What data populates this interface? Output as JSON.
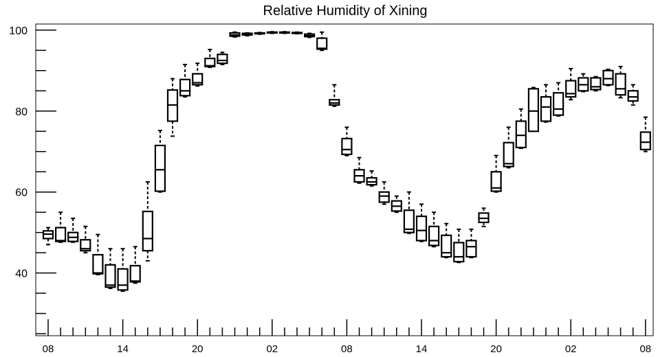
{
  "chart_data": {
    "type": "boxplot",
    "title": "Relative Humidity of Xining",
    "xlabel": "",
    "ylabel": "",
    "ylim": [
      24.5,
      101.5
    ],
    "y_ticks": [
      40,
      60,
      80,
      100
    ],
    "x_tick_labels": [
      "08",
      "14",
      "20",
      "02",
      "08",
      "14",
      "20",
      "02",
      "08"
    ],
    "x_tick_hours": [
      0,
      6,
      12,
      18,
      24,
      30,
      36,
      42,
      48
    ],
    "grid": false,
    "series": [
      {
        "hour": 0,
        "whisker_low": 47.0,
        "q1": 48.5,
        "median": 49.6,
        "q3": 50.4,
        "whisker_high": 51.2
      },
      {
        "hour": 1,
        "whisker_low": 47.6,
        "q1": 47.8,
        "median": 48.0,
        "q3": 51.2,
        "whisker_high": 55.0
      },
      {
        "hour": 2,
        "whisker_low": 47.6,
        "q1": 47.8,
        "median": 48.8,
        "q3": 50.0,
        "whisker_high": 53.5
      },
      {
        "hour": 3,
        "whisker_low": 45.0,
        "q1": 45.5,
        "median": 46.0,
        "q3": 48.2,
        "whisker_high": 51.5
      },
      {
        "hour": 4,
        "whisker_low": 39.6,
        "q1": 39.8,
        "median": 40.0,
        "q3": 44.5,
        "whisker_high": 49.5
      },
      {
        "hour": 5,
        "whisker_low": 36.2,
        "q1": 36.5,
        "median": 37.0,
        "q3": 42.0,
        "whisker_high": 46.0
      },
      {
        "hour": 6,
        "whisker_low": 35.5,
        "q1": 35.8,
        "median": 37.0,
        "q3": 41.0,
        "whisker_high": 46.0
      },
      {
        "hour": 7,
        "whisker_low": 37.5,
        "q1": 37.8,
        "median": 38.0,
        "q3": 41.8,
        "whisker_high": 46.5
      },
      {
        "hour": 8,
        "whisker_low": 43.0,
        "q1": 45.5,
        "median": 48.5,
        "q3": 55.2,
        "whisker_high": 62.5
      },
      {
        "hour": 9,
        "whisker_low": 60.0,
        "q1": 60.2,
        "median": 65.5,
        "q3": 71.5,
        "whisker_high": 75.2
      },
      {
        "hour": 10,
        "whisker_low": 73.8,
        "q1": 77.5,
        "median": 81.5,
        "q3": 85.2,
        "whisker_high": 88.0
      },
      {
        "hour": 11,
        "whisker_low": 83.5,
        "q1": 83.8,
        "median": 85.0,
        "q3": 87.8,
        "whisker_high": 91.5
      },
      {
        "hour": 12,
        "whisker_low": 86.2,
        "q1": 86.5,
        "median": 87.0,
        "q3": 89.2,
        "whisker_high": 91.8
      },
      {
        "hour": 13,
        "whisker_low": 90.8,
        "q1": 91.0,
        "median": 91.2,
        "q3": 93.0,
        "whisker_high": 95.2
      },
      {
        "hour": 14,
        "whisker_low": 91.5,
        "q1": 91.8,
        "median": 92.5,
        "q3": 94.0,
        "whisker_high": 94.5
      },
      {
        "hour": 15,
        "whisker_low": 98.3,
        "q1": 98.5,
        "median": 98.8,
        "q3": 99.3,
        "whisker_high": 99.5
      },
      {
        "hour": 16,
        "whisker_low": 98.6,
        "q1": 98.8,
        "median": 99.0,
        "q3": 99.2,
        "whisker_high": 99.3
      },
      {
        "hour": 17,
        "whisker_low": 99.0,
        "q1": 99.1,
        "median": 99.2,
        "q3": 99.3,
        "whisker_high": 99.4
      },
      {
        "hour": 18,
        "whisker_low": 99.2,
        "q1": 99.3,
        "median": 99.4,
        "q3": 99.5,
        "whisker_high": 99.6
      },
      {
        "hour": 19,
        "whisker_low": 99.2,
        "q1": 99.3,
        "median": 99.4,
        "q3": 99.5,
        "whisker_high": 99.6
      },
      {
        "hour": 20,
        "whisker_low": 99.1,
        "q1": 99.2,
        "median": 99.3,
        "q3": 99.4,
        "whisker_high": 99.5
      },
      {
        "hour": 21,
        "whisker_low": 98.2,
        "q1": 98.4,
        "median": 98.6,
        "q3": 99.0,
        "whisker_high": 99.2
      },
      {
        "hour": 22,
        "whisker_low": 95.0,
        "q1": 95.3,
        "median": 95.5,
        "q3": 98.0,
        "whisker_high": 99.5
      },
      {
        "hour": 23,
        "whisker_low": 81.2,
        "q1": 81.5,
        "median": 82.0,
        "q3": 82.8,
        "whisker_high": 86.5
      },
      {
        "hour": 24,
        "whisker_low": 69.0,
        "q1": 69.3,
        "median": 70.5,
        "q3": 73.2,
        "whisker_high": 76.0
      },
      {
        "hour": 25,
        "whisker_low": 62.2,
        "q1": 62.5,
        "median": 64.0,
        "q3": 65.5,
        "whisker_high": 68.5
      },
      {
        "hour": 26,
        "whisker_low": 61.5,
        "q1": 61.8,
        "median": 62.5,
        "q3": 63.5,
        "whisker_high": 65.2
      },
      {
        "hour": 27,
        "whisker_low": 57.0,
        "q1": 57.5,
        "median": 59.0,
        "q3": 60.0,
        "whisker_high": 62.5
      },
      {
        "hour": 28,
        "whisker_low": 55.0,
        "q1": 55.3,
        "median": 56.5,
        "q3": 57.8,
        "whisker_high": 59.0
      },
      {
        "hour": 29,
        "whisker_low": 49.8,
        "q1": 50.0,
        "median": 50.8,
        "q3": 55.5,
        "whisker_high": 60.0
      },
      {
        "hour": 30,
        "whisker_low": 47.8,
        "q1": 48.0,
        "median": 50.5,
        "q3": 54.0,
        "whisker_high": 57.0
      },
      {
        "hour": 31,
        "whisker_low": 46.5,
        "q1": 46.8,
        "median": 48.0,
        "q3": 51.5,
        "whisker_high": 55.0
      },
      {
        "hour": 32,
        "whisker_low": 43.8,
        "q1": 44.0,
        "median": 45.0,
        "q3": 49.3,
        "whisker_high": 52.2
      },
      {
        "hour": 33,
        "whisker_low": 42.6,
        "q1": 42.8,
        "median": 44.0,
        "q3": 47.5,
        "whisker_high": 50.8
      },
      {
        "hour": 34,
        "whisker_low": 43.8,
        "q1": 44.0,
        "median": 46.5,
        "q3": 48.0,
        "whisker_high": 50.8
      },
      {
        "hour": 35,
        "whisker_low": 51.5,
        "q1": 52.5,
        "median": 53.5,
        "q3": 54.8,
        "whisker_high": 56.0
      },
      {
        "hour": 36,
        "whisker_low": 60.0,
        "q1": 60.2,
        "median": 61.0,
        "q3": 65.0,
        "whisker_high": 69.0
      },
      {
        "hour": 37,
        "whisker_low": 66.0,
        "q1": 66.3,
        "median": 67.0,
        "q3": 72.2,
        "whisker_high": 76.0
      },
      {
        "hour": 38,
        "whisker_low": 70.8,
        "q1": 71.0,
        "median": 74.0,
        "q3": 77.5,
        "whisker_high": 80.5
      },
      {
        "hour": 39,
        "whisker_low": 75.0,
        "q1": 75.0,
        "median": 80.0,
        "q3": 85.5,
        "whisker_high": 85.8
      },
      {
        "hour": 40,
        "whisker_low": 77.3,
        "q1": 77.5,
        "median": 81.0,
        "q3": 83.5,
        "whisker_high": 86.5
      },
      {
        "hour": 41,
        "whisker_low": 78.8,
        "q1": 79.0,
        "median": 80.5,
        "q3": 84.5,
        "whisker_high": 87.0
      },
      {
        "hour": 42,
        "whisker_low": 82.8,
        "q1": 83.5,
        "median": 84.3,
        "q3": 87.5,
        "whisker_high": 90.5
      },
      {
        "hour": 43,
        "whisker_low": 84.8,
        "q1": 85.0,
        "median": 86.5,
        "q3": 88.2,
        "whisker_high": 89.2
      },
      {
        "hour": 44,
        "whisker_low": 85.0,
        "q1": 85.3,
        "median": 86.0,
        "q3": 88.2,
        "whisker_high": 88.5
      },
      {
        "hour": 45,
        "whisker_low": 86.3,
        "q1": 86.5,
        "median": 88.0,
        "q3": 90.0,
        "whisker_high": 90.3
      },
      {
        "hour": 46,
        "whisker_low": 83.3,
        "q1": 84.0,
        "median": 85.5,
        "q3": 89.2,
        "whisker_high": 91.0
      },
      {
        "hour": 47,
        "whisker_low": 81.5,
        "q1": 82.5,
        "median": 83.5,
        "q3": 85.0,
        "whisker_high": 86.5
      },
      {
        "hour": 48,
        "whisker_low": 70.0,
        "q1": 70.5,
        "median": 72.3,
        "q3": 74.8,
        "whisker_high": 78.5
      }
    ]
  }
}
